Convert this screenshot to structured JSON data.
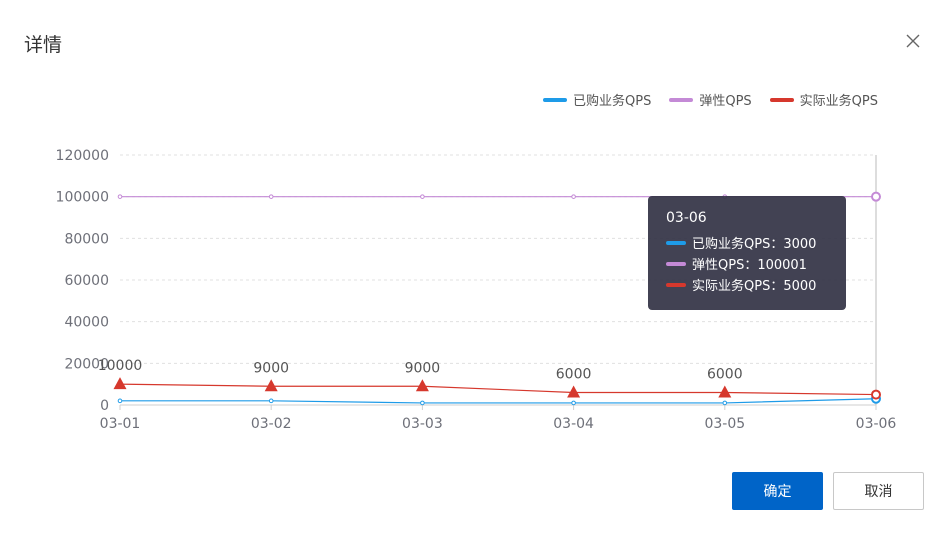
{
  "dialog": {
    "title": "详情",
    "confirm_label": "确定",
    "cancel_label": "取消"
  },
  "legend": [
    {
      "name": "已购业务QPS",
      "color": "#1e9be8"
    },
    {
      "name": "弹性QPS",
      "color": "#c48ad6"
    },
    {
      "name": "实际业务QPS",
      "color": "#d6382d"
    }
  ],
  "tooltip": {
    "title": "03-06",
    "rows": [
      {
        "label": "已购业务QPS：3000",
        "color": "#1e9be8"
      },
      {
        "label": "弹性QPS：100001",
        "color": "#c48ad6"
      },
      {
        "label": "实际业务QPS：5000",
        "color": "#d6382d"
      }
    ]
  },
  "chart_data": {
    "type": "line",
    "categories": [
      "03-01",
      "03-02",
      "03-03",
      "03-04",
      "03-05",
      "03-06"
    ],
    "ylim": [
      0,
      120000
    ],
    "yticks": [
      0,
      20000,
      40000,
      60000,
      80000,
      100000,
      120000
    ],
    "grid": true,
    "legend_position": "top-right",
    "series": [
      {
        "name": "已购业务QPS",
        "color": "#1e9be8",
        "values": [
          2000,
          2000,
          1000,
          1000,
          1000,
          3000
        ],
        "labels": false
      },
      {
        "name": "弹性QPS",
        "color": "#c48ad6",
        "values": [
          100000,
          100000,
          100000,
          100000,
          100000,
          100001
        ],
        "labels": false
      },
      {
        "name": "实际业务QPS",
        "color": "#d6382d",
        "values": [
          10000,
          9000,
          9000,
          6000,
          6000,
          5000
        ],
        "labels": true,
        "label_values": [
          "10000",
          "9000",
          "9000",
          "6000",
          "6000",
          ""
        ]
      }
    ],
    "highlight_index": 5
  }
}
